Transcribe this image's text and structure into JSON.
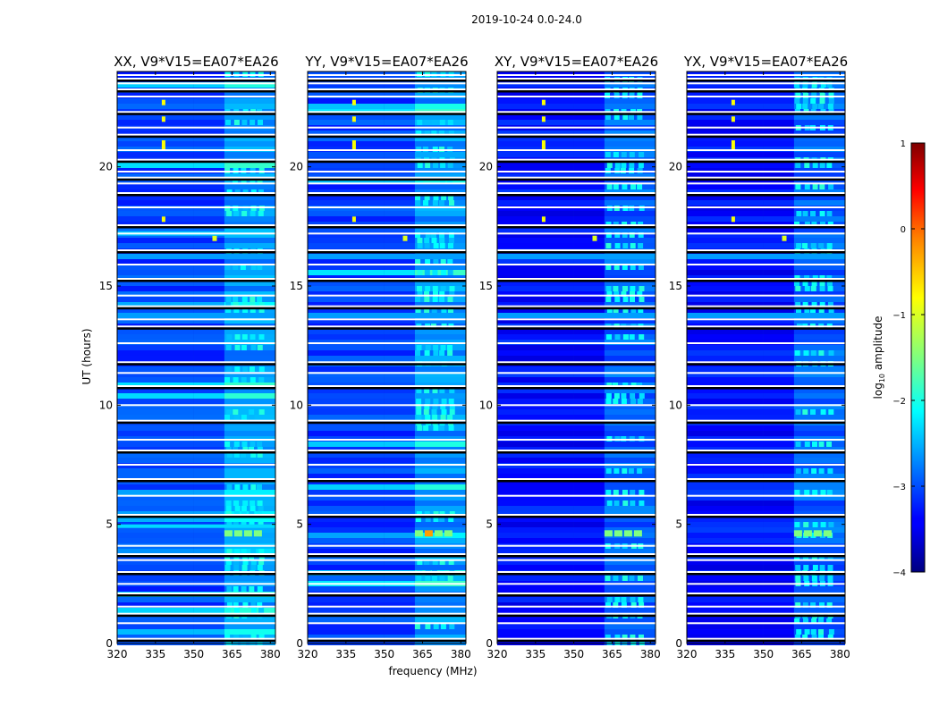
{
  "chart_data": {
    "type": "heatmap",
    "suptitle": "2019-10-24 0.0-24.0",
    "xlabel": "frequency (MHz)",
    "ylabel": "UT (hours)",
    "xlim": [
      320,
      382
    ],
    "ylim": [
      0,
      24
    ],
    "xticks": [
      320,
      335,
      350,
      365,
      380
    ],
    "yticks": [
      0,
      5,
      10,
      15,
      20
    ],
    "panels": [
      {
        "title": "XX, V9*V15=EA07*EA26",
        "pol": "XX"
      },
      {
        "title": "YY, V9*V15=EA07*EA26",
        "pol": "YY"
      },
      {
        "title": "XY, V9*V15=EA07*EA26",
        "pol": "XY"
      },
      {
        "title": "YX, V9*V15=EA07*EA26",
        "pol": "YX"
      }
    ],
    "colorbar": {
      "label_prefix": "log",
      "label_sub": "10",
      "label_suffix": " amplitude",
      "min": -4,
      "max": 1,
      "ticks": [
        -4,
        -3,
        -2,
        -1,
        0,
        1
      ],
      "tick_labels": [
        "−4",
        "−3",
        "−2",
        "−1",
        "0",
        "1"
      ],
      "colormap": "jet"
    },
    "features": {
      "bright_band_mhz": [
        362,
        380
      ],
      "rfi_channel_mhz": 338,
      "rfi_hours": [
        17.8,
        20.8,
        21.0,
        22.0,
        22.7
      ],
      "burst_mhz": 358,
      "burst_hour": 17.0,
      "strong_burst_hour": 4.6,
      "flag_gap_hours": [
        0.2,
        0.85,
        1.25,
        1.55,
        2.1,
        2.5,
        3.0,
        3.5,
        3.75,
        4.1,
        5.4,
        6.2,
        6.9,
        7.5,
        8.1,
        8.55,
        9.35,
        10.0,
        10.8,
        11.35,
        11.8,
        12.6,
        13.3,
        13.6,
        14.15,
        14.6,
        15.3,
        15.9,
        16.5,
        17.2,
        17.55,
        18.3,
        18.9,
        19.3,
        19.55,
        19.8,
        20.3,
        20.7,
        21.35,
        21.65,
        22.3,
        22.95,
        23.25,
        23.5,
        23.7,
        23.85
      ]
    }
  }
}
